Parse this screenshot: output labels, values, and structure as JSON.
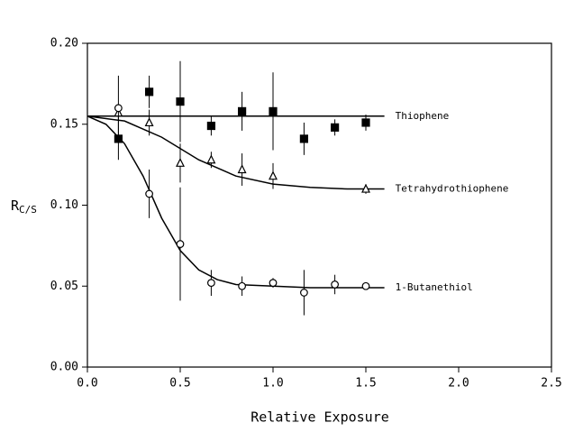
{
  "chart_data": {
    "type": "scatter",
    "xlabel": "Relative Exposure",
    "ylabel": "R",
    "ylabel_sub": "C/S",
    "xlim": [
      0,
      2.5
    ],
    "ylim": [
      0,
      0.2
    ],
    "xticks": [
      {
        "value": 0,
        "label": "0.0"
      },
      {
        "value": 0.5,
        "label": "0.5"
      },
      {
        "value": 1,
        "label": "1.0"
      },
      {
        "value": 1.5,
        "label": "1.5"
      },
      {
        "value": 2,
        "label": "2.0"
      },
      {
        "value": 2.5,
        "label": "2.5"
      }
    ],
    "yticks": [
      {
        "value": 0,
        "label": "0.00"
      },
      {
        "value": 0.05,
        "label": "0.05"
      },
      {
        "value": 0.1,
        "label": "0.10"
      },
      {
        "value": 0.15,
        "label": "0.15"
      },
      {
        "value": 0.2,
        "label": "0.20"
      }
    ],
    "color": "#000000",
    "series": [
      {
        "name": "Thiophene",
        "marker": "square-filled",
        "x": [
          0.167,
          0.333,
          0.5,
          0.667,
          0.833,
          1.0,
          1.167,
          1.333,
          1.5
        ],
        "values": [
          0.141,
          0.17,
          0.164,
          0.149,
          0.158,
          0.158,
          0.141,
          0.148,
          0.151
        ],
        "error": [
          0.013,
          0.01,
          0.025,
          0.006,
          0.012,
          0.024,
          0.01,
          0.005,
          0.005
        ],
        "fit_x": [
          0,
          1.6
        ],
        "fit_values": [
          0.155,
          0.155
        ]
      },
      {
        "name": "Tetrahydrothiophene",
        "marker": "triangle",
        "x": [
          0.167,
          0.333,
          0.5,
          0.667,
          0.833,
          1.0,
          1.5
        ],
        "values": [
          0.157,
          0.151,
          0.126,
          0.128,
          0.122,
          0.118,
          0.11
        ],
        "error": [
          0.003,
          0.008,
          0.012,
          0.005,
          0.01,
          0.008,
          0.003
        ],
        "fit_x": [
          0,
          0.2,
          0.4,
          0.6,
          0.8,
          1.0,
          1.2,
          1.4,
          1.6
        ],
        "fit_values": [
          0.155,
          0.152,
          0.142,
          0.128,
          0.118,
          0.113,
          0.111,
          0.11,
          0.11
        ]
      },
      {
        "name": "1-Butanethiol",
        "marker": "circle",
        "x": [
          0.167,
          0.333,
          0.5,
          0.667,
          0.833,
          1.0,
          1.167,
          1.333,
          1.5
        ],
        "values": [
          0.16,
          0.107,
          0.076,
          0.052,
          0.05,
          0.052,
          0.046,
          0.051,
          0.05
        ],
        "error": [
          0.02,
          0.015,
          0.035,
          0.008,
          0.006,
          0.003,
          0.014,
          0.006,
          0.002
        ],
        "fit_x": [
          0,
          0.1,
          0.2,
          0.3,
          0.4,
          0.5,
          0.6,
          0.7,
          0.8,
          1.0,
          1.2,
          1.6
        ],
        "fit_values": [
          0.155,
          0.15,
          0.138,
          0.118,
          0.092,
          0.072,
          0.06,
          0.054,
          0.051,
          0.05,
          0.049,
          0.049
        ]
      }
    ]
  }
}
